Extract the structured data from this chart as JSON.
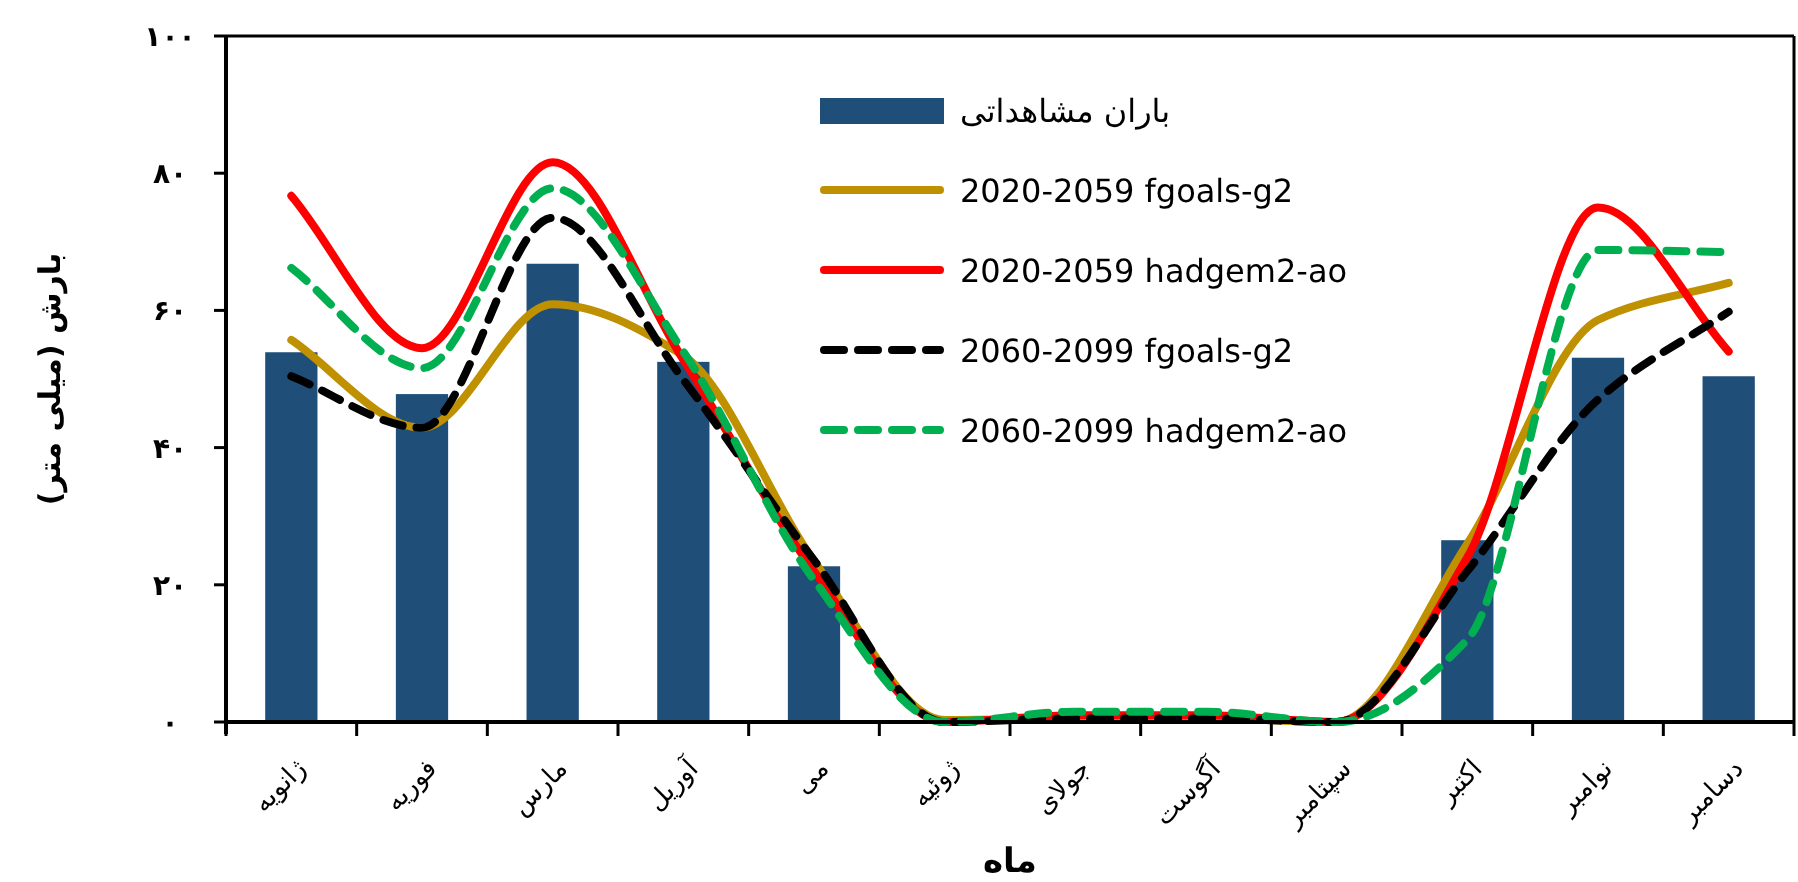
{
  "chart_data": {
    "type": "bar",
    "xlabel": "ماه",
    "ylabel": "بارش (میلی متر)",
    "categories": [
      "ژانویه",
      "فوریه",
      "مارس",
      "آوریل",
      "می",
      "ژوئیه",
      "جولای",
      "آگوست",
      "سپتامبر",
      "اکتبر",
      "نوامبر",
      "دسامبر"
    ],
    "series": [
      {
        "name": "باران مشاهداتی",
        "color": "#1f4e79",
        "values": [
          53.9,
          47.8,
          66.8,
          52.5,
          22.7,
          0,
          0,
          0,
          0,
          26.5,
          53.1,
          50.4
        ]
      },
      {
        "name": "2020-2059 fgoals-g2",
        "type": "line",
        "line_style": "solid",
        "color": "#bf9000",
        "values": [
          55.7,
          42.9,
          60.9,
          53.4,
          23.5,
          0.3,
          0.5,
          0.5,
          0,
          26,
          58.6,
          64
        ]
      },
      {
        "name": "2020-2059 hadgem2-ao",
        "type": "line",
        "line_style": "solid",
        "color": "#ff0000",
        "values": [
          76.7,
          54.5,
          81.6,
          52.8,
          22,
          0,
          1,
          1,
          0,
          24,
          75,
          54
        ]
      },
      {
        "name": "2060-2099 fgoals-g2",
        "type": "line",
        "line_style": "dashed",
        "color": "#000000",
        "values": [
          50.4,
          42.9,
          73.5,
          49.9,
          23.6,
          0,
          0.5,
          0.5,
          0,
          22,
          47,
          59.8
        ]
      },
      {
        "name": "2060-2099 hadgem2-ao",
        "type": "line",
        "line_style": "dashed",
        "color": "#00b050",
        "values": [
          66.2,
          51.6,
          77.8,
          54,
          20.7,
          0,
          1.5,
          1.5,
          0,
          12,
          68.8,
          68.5
        ]
      }
    ],
    "ylim": [
      0,
      100
    ],
    "yticks": [
      {
        "value": 0,
        "label": "۰"
      },
      {
        "value": 20,
        "label": "۲۰"
      },
      {
        "value": 40,
        "label": "۴۰"
      },
      {
        "value": 60,
        "label": "۶۰"
      },
      {
        "value": 80,
        "label": "۸۰"
      },
      {
        "value": 100,
        "label": "۱۰۰"
      }
    ],
    "grid": false,
    "legend": "top right",
    "marker": "none"
  }
}
